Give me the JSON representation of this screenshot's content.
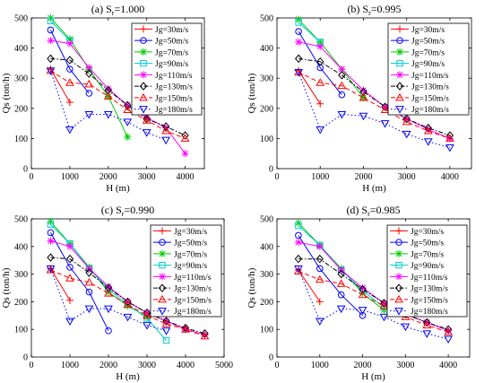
{
  "chart_data": [
    {
      "type": "line",
      "title_main": "(a) S",
      "title_sub": "r",
      "title_value": "=1.000",
      "xlabel": "H (m)",
      "ylabel": "Qs (ton/h)",
      "xlim": [
        0,
        4500
      ],
      "ylim": [
        0,
        500
      ],
      "xticks": [
        0,
        1000,
        2000,
        3000,
        4000
      ],
      "yticks": [
        0,
        100,
        200,
        300,
        400,
        500
      ],
      "legend_position": "top-right",
      "series": [
        {
          "name": "Jg=30m/s",
          "color": "#ff0000",
          "marker": "plus",
          "dash": "solid",
          "x": [
            500,
            1000
          ],
          "y": [
            330,
            220
          ]
        },
        {
          "name": "Jg=50m/s",
          "color": "#0000ff",
          "marker": "circle",
          "dash": "solid",
          "x": [
            500,
            1000,
            1500
          ],
          "y": [
            460,
            330,
            250
          ]
        },
        {
          "name": "Jg=70m/s",
          "color": "#00cc00",
          "marker": "star",
          "dash": "solid",
          "x": [
            500,
            1000,
            1500,
            2000,
            2500
          ],
          "y": [
            500,
            430,
            330,
            240,
            105
          ]
        },
        {
          "name": "Jg=90m/s",
          "color": "#00cccc",
          "marker": "square",
          "dash": "solid",
          "x": [
            500,
            1000
          ],
          "y": [
            490,
            425
          ]
        },
        {
          "name": "Jg=110m/s",
          "color": "#ff00ff",
          "marker": "star",
          "dash": "solid",
          "x": [
            500,
            1000,
            1500,
            2000,
            2500,
            3000,
            3500,
            4000
          ],
          "y": [
            425,
            415,
            335,
            265,
            210,
            170,
            135,
            50
          ]
        },
        {
          "name": "Jg=130m/s",
          "color": "#000000",
          "marker": "diamond",
          "dash": "dashdot",
          "x": [
            500,
            1000,
            1500,
            2000,
            2500,
            3000,
            3500,
            4000
          ],
          "y": [
            365,
            360,
            315,
            260,
            210,
            165,
            140,
            110
          ]
        },
        {
          "name": "Jg=150m/s",
          "color": "#ff0000",
          "marker": "triangle-up",
          "dash": "dashed",
          "x": [
            500,
            1000,
            1500,
            2000,
            2500,
            3000,
            3500,
            4000
          ],
          "y": [
            325,
            285,
            280,
            240,
            195,
            160,
            125,
            100
          ]
        },
        {
          "name": "Jg=180m/s",
          "color": "#0000ff",
          "marker": "triangle-down",
          "dash": "dotted",
          "x": [
            500,
            1000,
            1500,
            2000,
            2500,
            3000,
            3500
          ],
          "y": [
            325,
            130,
            180,
            180,
            155,
            120,
            95
          ]
        }
      ]
    },
    {
      "type": "line",
      "title_main": "(b) S",
      "title_sub": "r",
      "title_value": "=0.995",
      "xlabel": "H (m)",
      "ylabel": "Qs (ton/h)",
      "xlim": [
        0,
        4500
      ],
      "ylim": [
        0,
        500
      ],
      "xticks": [
        0,
        1000,
        2000,
        3000,
        4000
      ],
      "yticks": [
        0,
        100,
        200,
        300,
        400,
        500
      ],
      "legend_position": "top-right",
      "series": [
        {
          "name": "Jg=30m/s",
          "color": "#ff0000",
          "marker": "plus",
          "dash": "solid",
          "x": [
            500,
            1000
          ],
          "y": [
            325,
            215
          ]
        },
        {
          "name": "Jg=50m/s",
          "color": "#0000ff",
          "marker": "circle",
          "dash": "solid",
          "x": [
            500,
            1000,
            1500
          ],
          "y": [
            455,
            335,
            245
          ]
        },
        {
          "name": "Jg=70m/s",
          "color": "#00cc00",
          "marker": "star",
          "dash": "solid",
          "x": [
            500,
            1000,
            1500,
            2000
          ],
          "y": [
            495,
            420,
            330,
            235
          ]
        },
        {
          "name": "Jg=90m/s",
          "color": "#00cccc",
          "marker": "square",
          "dash": "solid",
          "x": [
            500,
            1000
          ],
          "y": [
            485,
            420
          ]
        },
        {
          "name": "Jg=110m/s",
          "color": "#ff00ff",
          "marker": "star",
          "dash": "solid",
          "x": [
            500,
            1000,
            1500,
            2000,
            2500,
            3000,
            3500,
            4000
          ],
          "y": [
            420,
            405,
            330,
            260,
            205,
            165,
            130,
            100
          ]
        },
        {
          "name": "Jg=130m/s",
          "color": "#000000",
          "marker": "diamond",
          "dash": "dashdot",
          "x": [
            500,
            1000,
            1500,
            2000,
            2500,
            3000,
            3500,
            4000
          ],
          "y": [
            365,
            355,
            310,
            255,
            205,
            165,
            135,
            110
          ]
        },
        {
          "name": "Jg=150m/s",
          "color": "#ff0000",
          "marker": "triangle-up",
          "dash": "dashed",
          "x": [
            500,
            1000,
            1500,
            2000,
            2500,
            3000,
            3500,
            4000
          ],
          "y": [
            320,
            285,
            275,
            235,
            195,
            155,
            125,
            100
          ]
        },
        {
          "name": "Jg=180m/s",
          "color": "#0000ff",
          "marker": "triangle-down",
          "dash": "dotted",
          "x": [
            500,
            1000,
            1500,
            2000,
            2500,
            3000,
            3500,
            4000
          ],
          "y": [
            320,
            130,
            180,
            175,
            150,
            115,
            90,
            70
          ]
        }
      ]
    },
    {
      "type": "line",
      "title_main": "(c) S",
      "title_sub": "r",
      "title_value": "=0.990",
      "xlabel": "H (m)",
      "ylabel": "Qs (ton/h)",
      "xlim": [
        0,
        5000
      ],
      "ylim": [
        0,
        500
      ],
      "xticks": [
        0,
        1000,
        2000,
        3000,
        4000,
        5000
      ],
      "yticks": [
        0,
        100,
        200,
        300,
        400,
        500
      ],
      "legend_position": "top-right",
      "series": [
        {
          "name": "Jg=30m/s",
          "color": "#ff0000",
          "marker": "plus",
          "dash": "solid",
          "x": [
            500,
            1000
          ],
          "y": [
            320,
            205
          ]
        },
        {
          "name": "Jg=50m/s",
          "color": "#0000ff",
          "marker": "circle",
          "dash": "solid",
          "x": [
            500,
            1000,
            1500,
            2000
          ],
          "y": [
            450,
            325,
            235,
            95
          ]
        },
        {
          "name": "Jg=70m/s",
          "color": "#00cc00",
          "marker": "star",
          "dash": "solid",
          "x": [
            500,
            1000,
            1500,
            2000,
            2500,
            3000
          ],
          "y": [
            490,
            410,
            325,
            235,
            185,
            145
          ]
        },
        {
          "name": "Jg=90m/s",
          "color": "#00cccc",
          "marker": "square",
          "dash": "solid",
          "x": [
            500,
            1000,
            1500,
            2000,
            2500,
            3000,
            3500
          ],
          "y": [
            480,
            410,
            320,
            245,
            190,
            140,
            60
          ]
        },
        {
          "name": "Jg=110m/s",
          "color": "#ff00ff",
          "marker": "star",
          "dash": "solid",
          "x": [
            500,
            1000,
            1500,
            2000,
            2500,
            3000,
            3500,
            4000,
            4500
          ],
          "y": [
            420,
            400,
            320,
            255,
            200,
            160,
            130,
            100,
            80
          ]
        },
        {
          "name": "Jg=130m/s",
          "color": "#000000",
          "marker": "diamond",
          "dash": "dashdot",
          "x": [
            500,
            1000,
            1500,
            2000,
            2500,
            3000,
            3500,
            4000,
            4500
          ],
          "y": [
            360,
            355,
            305,
            250,
            200,
            160,
            130,
            105,
            85
          ]
        },
        {
          "name": "Jg=150m/s",
          "color": "#ff0000",
          "marker": "triangle-up",
          "dash": "dashed",
          "x": [
            500,
            1000,
            1500,
            2000,
            2500,
            3000,
            3500,
            4000,
            4500
          ],
          "y": [
            315,
            285,
            270,
            230,
            190,
            150,
            120,
            100,
            75
          ]
        },
        {
          "name": "Jg=180m/s",
          "color": "#0000ff",
          "marker": "triangle-down",
          "dash": "dotted",
          "x": [
            500,
            1000,
            1500,
            2000,
            2500,
            3000,
            3500
          ],
          "y": [
            320,
            130,
            175,
            175,
            145,
            115,
            95
          ]
        }
      ]
    },
    {
      "type": "line",
      "title_main": "(d) S",
      "title_sub": "r",
      "title_value": "=0.985",
      "xlabel": "H (m)",
      "ylabel": "Qs (ton/h)",
      "xlim": [
        0,
        4500
      ],
      "ylim": [
        0,
        500
      ],
      "xticks": [
        0,
        1000,
        2000,
        3000,
        4000
      ],
      "yticks": [
        0,
        100,
        200,
        300,
        400,
        500
      ],
      "legend_position": "top-right",
      "series": [
        {
          "name": "Jg=30m/s",
          "color": "#ff0000",
          "marker": "plus",
          "dash": "solid",
          "x": [
            500,
            1000
          ],
          "y": [
            315,
            200
          ]
        },
        {
          "name": "Jg=50m/s",
          "color": "#0000ff",
          "marker": "circle",
          "dash": "solid",
          "x": [
            500,
            1000,
            1500,
            2000
          ],
          "y": [
            440,
            320,
            225,
            150
          ]
        },
        {
          "name": "Jg=70m/s",
          "color": "#00cc00",
          "marker": "star",
          "dash": "solid",
          "x": [
            500,
            1000,
            1500,
            2000,
            2500
          ],
          "y": [
            485,
            405,
            320,
            230,
            170
          ]
        },
        {
          "name": "Jg=90m/s",
          "color": "#00cccc",
          "marker": "square",
          "dash": "solid",
          "x": [
            500,
            1000,
            1500,
            2000,
            2500
          ],
          "y": [
            475,
            405,
            315,
            240,
            180
          ]
        },
        {
          "name": "Jg=110m/s",
          "color": "#ff00ff",
          "marker": "star",
          "dash": "solid",
          "x": [
            500,
            1000,
            1500,
            2000,
            2500,
            3000,
            3500,
            4000
          ],
          "y": [
            415,
            400,
            315,
            250,
            195,
            155,
            125,
            95
          ]
        },
        {
          "name": "Jg=130m/s",
          "color": "#000000",
          "marker": "diamond",
          "dash": "dashdot",
          "x": [
            500,
            1000,
            1500,
            2000,
            2500,
            3000,
            3500,
            4000
          ],
          "y": [
            355,
            355,
            300,
            245,
            195,
            155,
            125,
            100
          ]
        },
        {
          "name": "Jg=150m/s",
          "color": "#ff0000",
          "marker": "triangle-up",
          "dash": "dashed",
          "x": [
            500,
            1000,
            1500,
            2000,
            2500,
            3000,
            3500,
            4000
          ],
          "y": [
            310,
            280,
            265,
            225,
            185,
            145,
            115,
            90
          ]
        },
        {
          "name": "Jg=180m/s",
          "color": "#0000ff",
          "marker": "triangle-down",
          "dash": "dotted",
          "x": [
            500,
            1000,
            1500,
            2000,
            2500,
            3000,
            3500,
            4000
          ],
          "y": [
            320,
            130,
            175,
            170,
            145,
            110,
            85,
            65
          ]
        }
      ]
    }
  ]
}
